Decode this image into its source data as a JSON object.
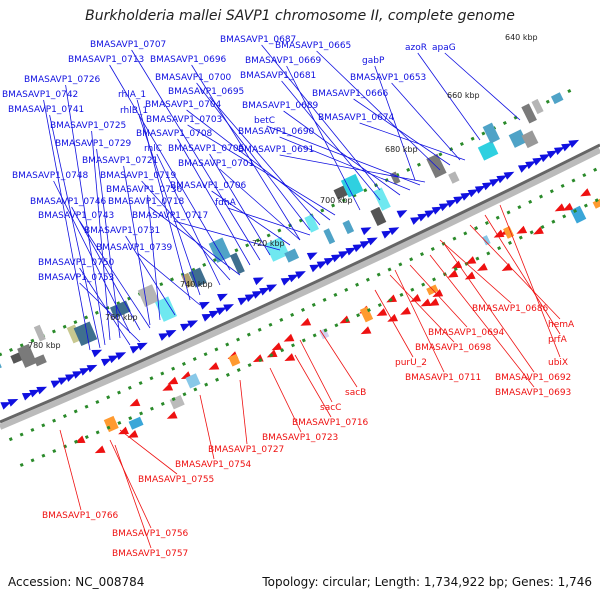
{
  "title": "Burkholderia mallei SAVP1 chromosome II, complete genome",
  "footer": {
    "accession": "Accession: NC_008784",
    "summary": "Topology: circular; Length: 1,734,922 bp; Genes: 1,746"
  },
  "colors": {
    "forward_gene": "#1010e0",
    "reverse_gene": "#ee1111",
    "backbone": "#777777",
    "tick": "#2a8a2a"
  },
  "scale_labels": [
    "640 kbp",
    "660 kbp",
    "680 kbp",
    "700 kbp",
    "720 kbp",
    "740 kbp",
    "760 kbp",
    "780 kbp"
  ],
  "forward_labels": [
    "BMASAVP1_0687",
    "BMASAVP1_0665",
    "BMASAVP1_0707",
    "BMASAVP1_0713",
    "BMASAVP1_0696",
    "BMASAVP1_0669",
    "gabP",
    "azoR",
    "apaG",
    "BMASAVP1_0726",
    "BMASAVP1_0700",
    "BMASAVP1_0681",
    "BMASAVP1_0653",
    "BMASAVP1_0742",
    "rhlA_1",
    "BMASAVP1_0695",
    "BMASAVP1_0666",
    "BMASAVP1_0741",
    "rhlB_1",
    "BMASAVP1_0704",
    "BMASAVP1_0689",
    "BMASAVP1_0725",
    "BMASAVP1_0703",
    "betC",
    "BMASAVP1_0674",
    "BMASAVP1_0708",
    "BMASAVP1_0690",
    "BMASAVP1_0729",
    "rhlC",
    "BMASAVP1_0705",
    "BMASAVP1_0691",
    "BMASAVP1_0721",
    "BMASAVP1_0701",
    "BMASAVP1_0748",
    "BMASAVP1_0719",
    "BMASAVP1_0736",
    "BMASAVP1_0706",
    "BMASAVP1_0746",
    "BMASAVP1_0718",
    "fdhA",
    "BMASAVP1_0743",
    "BMASAVP1_0717",
    "BMASAVP1_0731",
    "BMASAVP1_0739",
    "BMASAVP1_0750",
    "BMASAVP1_0753"
  ],
  "reverse_labels": [
    "BMASAVP1_0686",
    "hemA",
    "prfA",
    "BMASAVP1_0694",
    "BMASAVP1_0698",
    "ubiX",
    "purU_2",
    "BMASAVP1_0711",
    "BMASAVP1_0692",
    "BMASAVP1_0693",
    "sacB",
    "sacC",
    "BMASAVP1_0716",
    "BMASAVP1_0723",
    "BMASAVP1_0727",
    "BMASAVP1_0754",
    "BMASAVP1_0755",
    "BMASAVP1_0766",
    "BMASAVP1_0756",
    "BMASAVP1_0757"
  ]
}
